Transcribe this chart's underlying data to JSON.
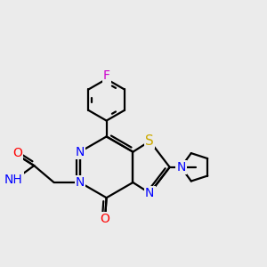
{
  "bg_color": "#ebebeb",
  "bond_color": "#000000",
  "bond_width": 1.6,
  "atom_colors": {
    "N": "#0000ff",
    "O": "#ff0000",
    "S": "#ccaa00",
    "F": "#cc00cc",
    "C": "#000000",
    "H": "#000000"
  },
  "font_size_atom": 10
}
